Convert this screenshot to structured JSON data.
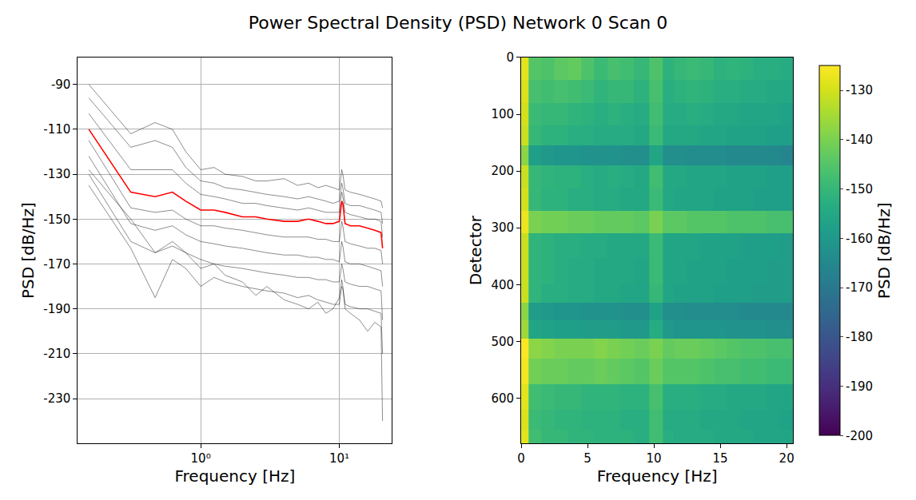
{
  "title": "Power Spectral Density (PSD) Network 0 Scan 0",
  "chart_data": [
    {
      "type": "line",
      "xlabel": "Frequency [Hz]",
      "ylabel": "PSD [dB/Hz]",
      "log": "x",
      "grid": true,
      "xlim": [
        0.13,
        24
      ],
      "xticks": [
        {
          "value": 1,
          "label": "10⁰"
        },
        {
          "value": 10,
          "label": "10¹"
        }
      ],
      "ylim": [
        -250,
        -78
      ],
      "yticks": [
        -90,
        -110,
        -130,
        -150,
        -170,
        -190,
        -210,
        -230
      ],
      "x": [
        0.156,
        0.313,
        0.469,
        0.625,
        0.781,
        1.0,
        1.25,
        1.5,
        2.0,
        2.5,
        3.0,
        4.0,
        5.0,
        6.0,
        7.0,
        8.0,
        9.0,
        10.0,
        10.4,
        10.6,
        11.0,
        12.0,
        14.0,
        16.0,
        18.0,
        20.0,
        20.5
      ],
      "series": [
        {
          "color": "#000000",
          "values": [
            -90,
            -112,
            -107,
            -110,
            -120,
            -128,
            -127,
            -130,
            -131,
            -133,
            -133,
            -132,
            -135,
            -134,
            -136,
            -135,
            -136,
            -137,
            -128,
            -130,
            -137,
            -138,
            -139,
            -140,
            -141,
            -142,
            -145
          ]
        },
        {
          "color": "#000000",
          "values": [
            -96,
            -118,
            -115,
            -118,
            -127,
            -133,
            -134,
            -136,
            -137,
            -138,
            -139,
            -140,
            -141,
            -140,
            -141,
            -142,
            -143,
            -142,
            -134,
            -136,
            -143,
            -144,
            -144,
            -145,
            -146,
            -147,
            -152
          ]
        },
        {
          "color": "#000000",
          "values": [
            -103,
            -128,
            -128,
            -128,
            -134,
            -139,
            -140,
            -141,
            -143,
            -143,
            -144,
            -145,
            -146,
            -145,
            -146,
            -147,
            -147,
            -147,
            -138,
            -140,
            -147,
            -148,
            -149,
            -150,
            -150,
            -151,
            -158
          ]
        },
        {
          "color": "#000000",
          "values": [
            -115,
            -145,
            -147,
            -146,
            -150,
            -153,
            -153,
            -154,
            -155,
            -156,
            -157,
            -158,
            -158,
            -158,
            -159,
            -159,
            -160,
            -160,
            -151,
            -153,
            -160,
            -161,
            -162,
            -163,
            -163,
            -164,
            -170
          ]
        },
        {
          "color": "#000000",
          "values": [
            -122,
            -152,
            -155,
            -153,
            -157,
            -160,
            -161,
            -162,
            -163,
            -164,
            -165,
            -166,
            -166,
            -167,
            -167,
            -168,
            -168,
            -169,
            -160,
            -162,
            -169,
            -170,
            -170,
            -171,
            -172,
            -173,
            -180
          ]
        },
        {
          "color": "#000000",
          "values": [
            -130,
            -160,
            -165,
            -162,
            -165,
            -168,
            -170,
            -171,
            -172,
            -173,
            -174,
            -175,
            -176,
            -176,
            -177,
            -177,
            -178,
            -178,
            -170,
            -172,
            -178,
            -179,
            -180,
            -180,
            -181,
            -182,
            -195
          ]
        },
        {
          "color": "#000000",
          "values": [
            -135,
            -163,
            -185,
            -168,
            -172,
            -180,
            -176,
            -178,
            -180,
            -181,
            -182,
            -183,
            -185,
            -184,
            -186,
            -187,
            -188,
            -188,
            -180,
            -181,
            -188,
            -189,
            -190,
            -190,
            -191,
            -192,
            -210
          ]
        },
        {
          "color": "#000000",
          "values": [
            -128,
            -150,
            -165,
            -160,
            -165,
            -172,
            -170,
            -175,
            -178,
            -184,
            -180,
            -186,
            -188,
            -190,
            -187,
            -192,
            -190,
            -185,
            -177,
            -180,
            -190,
            -192,
            -195,
            -200,
            -196,
            -198,
            -240
          ]
        },
        {
          "color": "#ff0000",
          "values": [
            -110,
            -138,
            -140,
            -138,
            -142,
            -146,
            -146,
            -147,
            -149,
            -149,
            -150,
            -151,
            -151,
            -150,
            -151,
            -152,
            -152,
            -151,
            -142,
            -143,
            -152,
            -153,
            -153,
            -154,
            -155,
            -156,
            -163
          ]
        }
      ]
    },
    {
      "type": "heatmap",
      "xlabel": "Frequency [Hz]",
      "ylabel": "Detector",
      "grid": false,
      "xlim": [
        0,
        20.5
      ],
      "xticks": [
        0,
        5,
        10,
        15,
        20
      ],
      "ylim": [
        680,
        0
      ],
      "yticks": [
        0,
        100,
        200,
        300,
        400,
        500,
        600
      ],
      "colorbar": {
        "title": "PSD [dB/Hz]",
        "range": [
          -200,
          -125
        ],
        "ticks": [
          -130,
          -140,
          -150,
          -160,
          -170,
          -180,
          -190,
          -200
        ]
      },
      "x": [
        0.1,
        1,
        2,
        3,
        4,
        5,
        6,
        7,
        8,
        9,
        10.3,
        11,
        12,
        13,
        14,
        15,
        16,
        17,
        18,
        19,
        20
      ],
      "y": [
        20,
        60,
        100,
        140,
        170,
        210,
        250,
        290,
        330,
        380,
        420,
        445,
        480,
        510,
        550,
        600,
        640,
        670
      ],
      "cells": [
        [
          -128,
          -145,
          -146,
          -144,
          -143,
          -146,
          -149,
          -147,
          -148,
          -150,
          -146,
          -152,
          -150,
          -149,
          -150,
          -152,
          -151,
          -152,
          -153,
          -153,
          -154
        ],
        [
          -129,
          -147,
          -148,
          -147,
          -148,
          -149,
          -151,
          -150,
          -150,
          -152,
          -147,
          -153,
          -152,
          -151,
          -152,
          -153,
          -153,
          -154,
          -154,
          -155,
          -155
        ],
        [
          -130,
          -149,
          -150,
          -150,
          -151,
          -152,
          -153,
          -152,
          -153,
          -154,
          -148,
          -154,
          -154,
          -153,
          -154,
          -155,
          -155,
          -156,
          -156,
          -156,
          -157
        ],
        [
          -131,
          -150,
          -152,
          -152,
          -153,
          -153,
          -154,
          -154,
          -154,
          -155,
          -149,
          -155,
          -155,
          -155,
          -156,
          -156,
          -157,
          -157,
          -157,
          -158,
          -158
        ],
        [
          -138,
          -158,
          -160,
          -161,
          -161,
          -162,
          -162,
          -162,
          -163,
          -163,
          -156,
          -163,
          -163,
          -164,
          -164,
          -164,
          -165,
          -165,
          -165,
          -165,
          -166
        ],
        [
          -131,
          -150,
          -151,
          -152,
          -152,
          -153,
          -154,
          -153,
          -154,
          -155,
          -148,
          -155,
          -155,
          -156,
          -156,
          -156,
          -157,
          -157,
          -157,
          -158,
          -158
        ],
        [
          -130,
          -150,
          -152,
          -152,
          -153,
          -153,
          -154,
          -154,
          -155,
          -155,
          -149,
          -155,
          -156,
          -156,
          -156,
          -157,
          -157,
          -157,
          -158,
          -158,
          -158
        ],
        [
          -127,
          -140,
          -141,
          -141,
          -142,
          -142,
          -143,
          -143,
          -143,
          -144,
          -140,
          -144,
          -144,
          -145,
          -145,
          -145,
          -146,
          -146,
          -146,
          -147,
          -147
        ],
        [
          -131,
          -151,
          -152,
          -153,
          -153,
          -154,
          -154,
          -155,
          -155,
          -155,
          -149,
          -156,
          -156,
          -156,
          -157,
          -157,
          -157,
          -158,
          -158,
          -158,
          -159
        ],
        [
          -131,
          -151,
          -152,
          -153,
          -154,
          -154,
          -155,
          -155,
          -155,
          -156,
          -149,
          -156,
          -156,
          -157,
          -157,
          -157,
          -158,
          -158,
          -158,
          -159,
          -159
        ],
        [
          -131,
          -151,
          -153,
          -153,
          -154,
          -154,
          -155,
          -155,
          -156,
          -156,
          -150,
          -156,
          -157,
          -157,
          -157,
          -158,
          -158,
          -158,
          -159,
          -159,
          -159
        ],
        [
          -138,
          -159,
          -160,
          -161,
          -161,
          -162,
          -162,
          -162,
          -163,
          -163,
          -157,
          -163,
          -163,
          -164,
          -164,
          -164,
          -164,
          -165,
          -165,
          -165,
          -165
        ],
        [
          -136,
          -156,
          -157,
          -158,
          -158,
          -159,
          -159,
          -159,
          -160,
          -160,
          -154,
          -160,
          -161,
          -161,
          -161,
          -161,
          -162,
          -162,
          -162,
          -163,
          -163
        ],
        [
          -125,
          -138,
          -139,
          -140,
          -140,
          -140,
          -139,
          -140,
          -141,
          -142,
          -140,
          -143,
          -142,
          -142,
          -143,
          -144,
          -145,
          -146,
          -146,
          -147,
          -147
        ],
        [
          -126,
          -141,
          -142,
          -142,
          -143,
          -143,
          -142,
          -143,
          -144,
          -145,
          -142,
          -145,
          -145,
          -145,
          -146,
          -147,
          -147,
          -148,
          -148,
          -149,
          -149
        ],
        [
          -128,
          -148,
          -149,
          -150,
          -150,
          -151,
          -151,
          -151,
          -152,
          -152,
          -147,
          -153,
          -153,
          -153,
          -154,
          -154,
          -155,
          -155,
          -155,
          -156,
          -156
        ],
        [
          -129,
          -149,
          -150,
          -151,
          -151,
          -152,
          -152,
          -152,
          -153,
          -153,
          -148,
          -154,
          -154,
          -154,
          -155,
          -155,
          -155,
          -156,
          -156,
          -156,
          -157
        ],
        [
          -128,
          -148,
          -150,
          -150,
          -151,
          -151,
          -152,
          -152,
          -152,
          -153,
          -148,
          -153,
          -154,
          -154,
          -154,
          -155,
          -155,
          -155,
          -156,
          -156,
          -156
        ]
      ]
    }
  ]
}
